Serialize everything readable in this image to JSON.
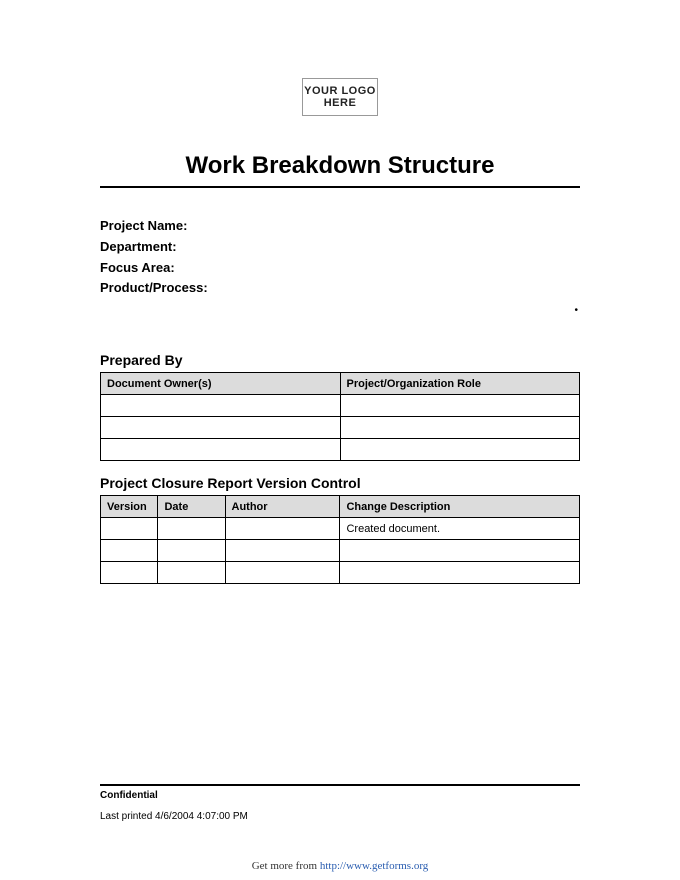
{
  "logo_text": "YOUR LOGO HERE",
  "title": "Work Breakdown Structure",
  "fields": {
    "project_name": "Project Name:",
    "department": "Department:",
    "focus_area": "Focus Area:",
    "product_process": "Product/Process:"
  },
  "prepared_by": {
    "heading": "Prepared By",
    "columns": [
      "Document Owner(s)",
      "Project/Organization Role"
    ],
    "col_widths": [
      "50%",
      "50%"
    ],
    "rows": [
      [
        "",
        ""
      ],
      [
        "",
        ""
      ],
      [
        "",
        ""
      ]
    ]
  },
  "version_control": {
    "heading": "Project Closure Report Version Control",
    "columns": [
      "Version",
      "Date",
      "Author",
      "Change Description"
    ],
    "col_widths": [
      "12%",
      "14%",
      "24%",
      "50%"
    ],
    "rows": [
      [
        "",
        "",
        "",
        "Created document."
      ],
      [
        "",
        "",
        "",
        ""
      ],
      [
        "",
        "",
        "",
        ""
      ]
    ]
  },
  "footer": {
    "confidential": "Confidential",
    "last_printed": "Last printed 4/6/2004 4:07:00 PM"
  },
  "attribution": {
    "prefix": "Get more from ",
    "link_text": "http://www.getforms.org"
  },
  "colors": {
    "header_bg": "#dcdcdc",
    "border": "#000000",
    "link": "#2a5db0"
  }
}
